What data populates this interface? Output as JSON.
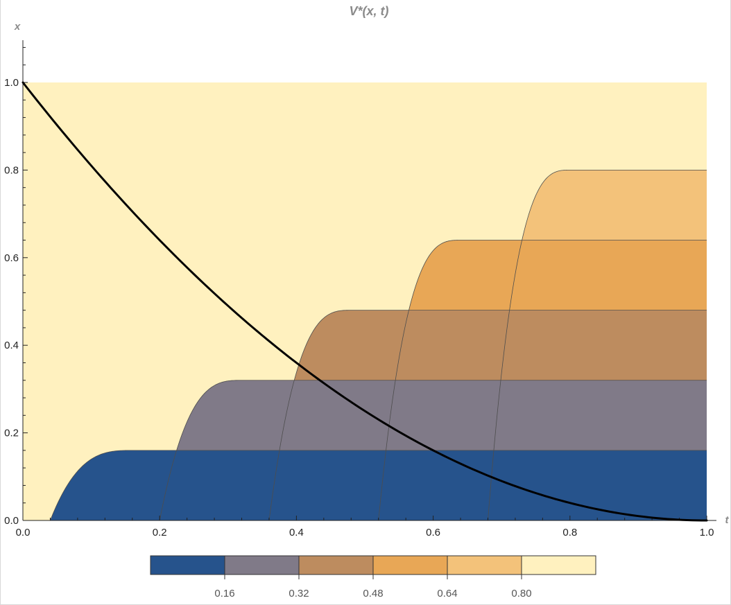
{
  "chart_data": {
    "type": "contour",
    "title": "V*(x, t)",
    "xlabel": "t",
    "ylabel": "x",
    "xlim": [
      0,
      1
    ],
    "ylim": [
      0,
      1
    ],
    "x_ticks": [
      "0.0",
      "0.2",
      "0.4",
      "0.6",
      "0.8",
      "1.0"
    ],
    "y_ticks": [
      "0.0",
      "0.2",
      "0.4",
      "0.6",
      "0.8",
      "1.0"
    ],
    "contour_levels": [
      0.16,
      0.32,
      0.48,
      0.64,
      0.8
    ],
    "band_colors": [
      "#26538c",
      "#807a88",
      "#bd8c5f",
      "#e8a756",
      "#f3c27a",
      "#fff1bf"
    ],
    "legend": {
      "placement": "bottom",
      "labels": [
        "0.16",
        "0.32",
        "0.48",
        "0.64",
        "0.80"
      ]
    },
    "curve": {
      "name": "",
      "color": "#000000",
      "points": [
        [
          0.0,
          1.0
        ],
        [
          0.1,
          0.81
        ],
        [
          0.2,
          0.64
        ],
        [
          0.3,
          0.49
        ],
        [
          0.4,
          0.36
        ],
        [
          0.5,
          0.25
        ],
        [
          0.6,
          0.16
        ],
        [
          0.7,
          0.09
        ],
        [
          0.8,
          0.04
        ],
        [
          0.9,
          0.01
        ],
        [
          1.0,
          0.0
        ]
      ]
    }
  }
}
